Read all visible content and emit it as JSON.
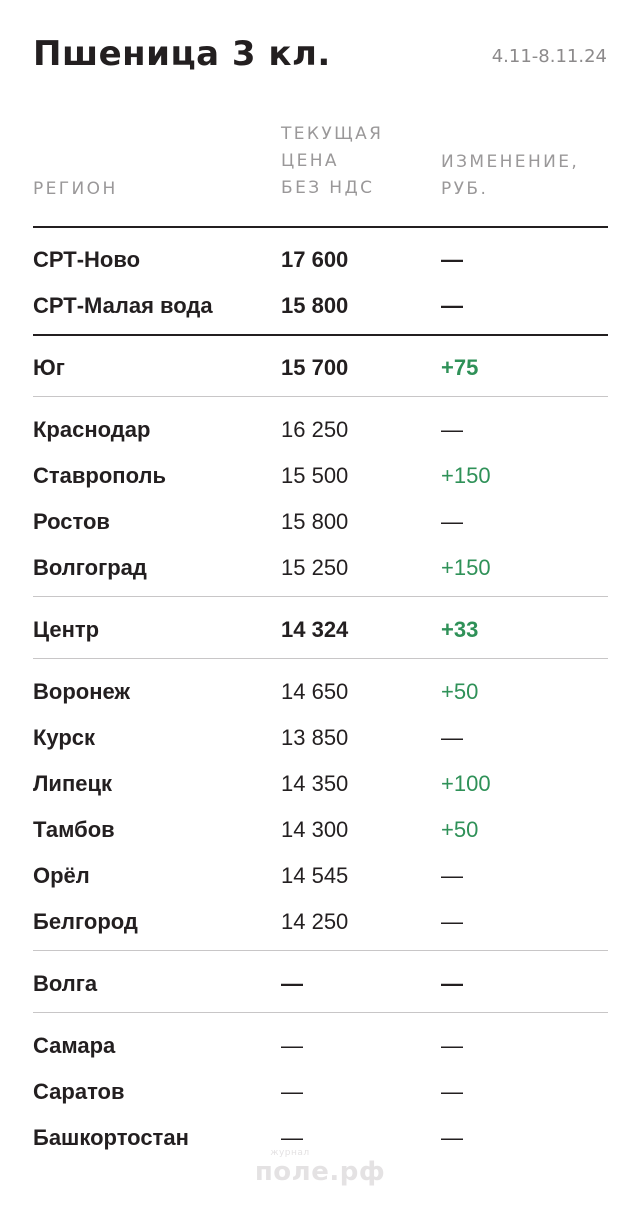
{
  "header": {
    "title": "Пшеница 3 кл.",
    "period": "4.11-8.11.24"
  },
  "columns": {
    "region": "РЕГИОН",
    "price": [
      "ТЕКУЩАЯ",
      "ЦЕНА",
      "БЕЗ НДС"
    ],
    "change": [
      "ИЗМЕНЕНИЕ,",
      "РУБ."
    ]
  },
  "rows": [
    {
      "region": "СРТ-Ново",
      "price": "17 600",
      "change": "—"
    },
    {
      "region": "СРТ-Малая вода",
      "price": "15 800",
      "change": "—"
    },
    {
      "region": "Юг",
      "price": "15 700",
      "change": "+75"
    },
    {
      "region": "Краснодар",
      "price": "16 250",
      "change": "—"
    },
    {
      "region": "Ставрополь",
      "price": "15 500",
      "change": "+150"
    },
    {
      "region": "Ростов",
      "price": "15 800",
      "change": "—"
    },
    {
      "region": "Волгоград",
      "price": "15 250",
      "change": "+150"
    },
    {
      "region": "Центр",
      "price": "14 324",
      "change": "+33"
    },
    {
      "region": "Воронеж",
      "price": "14 650",
      "change": "+50"
    },
    {
      "region": "Курск",
      "price": "13 850",
      "change": "—"
    },
    {
      "region": "Липецк",
      "price": "14 350",
      "change": "+100"
    },
    {
      "region": "Тамбов",
      "price": "14 300",
      "change": "+50"
    },
    {
      "region": "Орёл",
      "price": "14 545",
      "change": "—"
    },
    {
      "region": "Белгород",
      "price": "14 250",
      "change": "—"
    },
    {
      "region": "Волга",
      "price": "—",
      "change": "—"
    },
    {
      "region": "Самара",
      "price": "—",
      "change": "—"
    },
    {
      "region": "Саратов",
      "price": "—",
      "change": "—"
    },
    {
      "region": "Башкортостан",
      "price": "—",
      "change": "—"
    }
  ],
  "watermark": {
    "small": "журнал",
    "big": "поле.рф"
  },
  "colors": {
    "text": "#231f20",
    "muted": "#9a9899",
    "positive": "#2f9158",
    "divider": "#c8c6c7"
  }
}
